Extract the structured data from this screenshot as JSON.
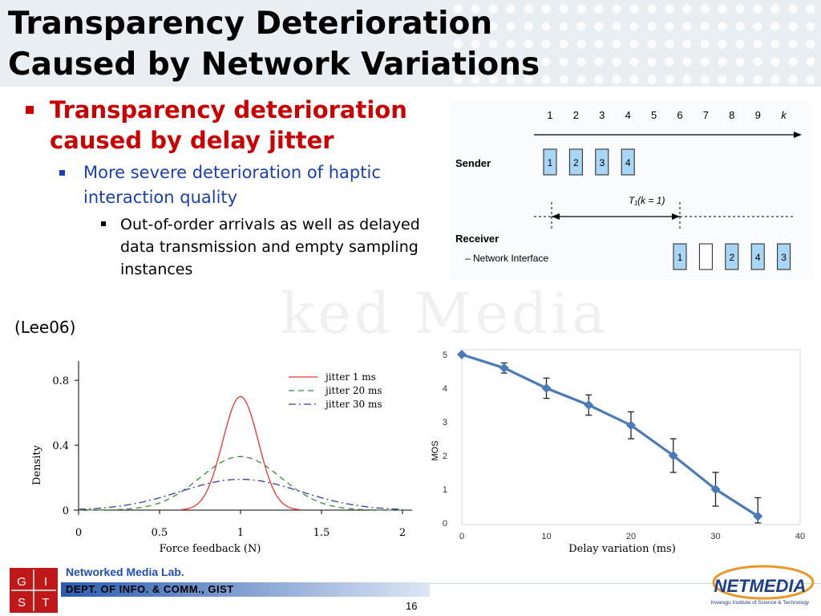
{
  "title": {
    "line1": "Transparency Deterioration",
    "line2": "Caused by Network Variations"
  },
  "watermark": "ked Media",
  "bullets": {
    "level1": "Transparency deterioration caused by delay jitter",
    "level2": "More severe deterioration of haptic interaction quality",
    "level3": "Out-of-order arrivals as well as delayed data transmission and empty sampling instances"
  },
  "citation": "(Lee06)",
  "timing_diagram": {
    "time_ticks": [
      "1",
      "2",
      "3",
      "4",
      "5",
      "6",
      "7",
      "8",
      "9",
      "k"
    ],
    "sender_label": "Sender",
    "sender_packets": [
      "1",
      "2",
      "3",
      "4"
    ],
    "interval_label": "T₁(k = 1)",
    "receiver_label": "Receiver",
    "receiver_sublabel": "– Network Interface",
    "receiver_packets": [
      "1",
      "",
      "2",
      "4",
      "3"
    ]
  },
  "chart_density": {
    "type": "line",
    "xlabel": "Force feedback (N)",
    "ylabel": "Density",
    "xlim": [
      0,
      2
    ],
    "ylim": [
      0,
      0.8
    ],
    "xticks": [
      "0",
      "0.5",
      "1",
      "1.5",
      "2"
    ],
    "yticks": [
      "0",
      "0.4",
      "0.8"
    ],
    "series": [
      {
        "name": "jitter 1 ms",
        "color": "#ee3333",
        "dash": "",
        "peak": 0.7,
        "sigma": 0.11
      },
      {
        "name": "jitter 20 ms",
        "color": "#3a8a3a",
        "dash": "7,5",
        "peak": 0.33,
        "sigma": 0.25
      },
      {
        "name": "jitter 30 ms",
        "color": "#3a3aa0",
        "dash": "9,4,2,4",
        "peak": 0.19,
        "sigma": 0.37
      }
    ]
  },
  "chart_mos": {
    "type": "line",
    "xlabel": "Delay variation (ms)",
    "ylabel": "MOS",
    "xlim": [
      0,
      40
    ],
    "ylim": [
      0,
      5
    ],
    "xticks": [
      "0",
      "10",
      "20",
      "30",
      "40"
    ],
    "yticks": [
      "0",
      "1",
      "2",
      "3",
      "4",
      "5"
    ],
    "x": [
      0,
      5,
      10,
      15,
      20,
      25,
      30,
      35
    ],
    "y": [
      5.0,
      4.6,
      4.0,
      3.5,
      2.9,
      2.0,
      1.0,
      0.2
    ],
    "err": [
      0,
      0.15,
      0.3,
      0.3,
      0.4,
      0.5,
      0.5,
      0.55
    ],
    "color": "#4a7ab8"
  },
  "footer": {
    "lab": "Networked Media Lab.",
    "dept": "DEPT. OF INFO. & COMM., GIST",
    "page": "16",
    "left_logo_letters": [
      "G",
      "I",
      "S",
      "T"
    ],
    "right_logo_main": "NETMEDIA",
    "right_logo_sub": "Kwangju Institute of Science & Technology"
  }
}
